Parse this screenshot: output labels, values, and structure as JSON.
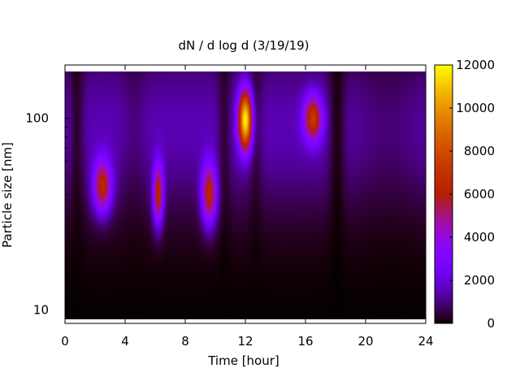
{
  "chart_data": {
    "type": "heatmap",
    "title": "dN / d log d (3/19/19)",
    "xlabel": "Time [hour]",
    "ylabel": "Particle size [nm]",
    "xlim": [
      0,
      24
    ],
    "ylim_nm": [
      8.5,
      190
    ],
    "y_scale": "log",
    "x_ticks": [
      "0",
      "4",
      "8",
      "12",
      "16",
      "20",
      "24"
    ],
    "x_tick_values": [
      0,
      4,
      8,
      12,
      16,
      20,
      24
    ],
    "y_ticks": [
      "10",
      "100"
    ],
    "y_tick_values": [
      10,
      100
    ],
    "colorbar": {
      "ticks": [
        "0",
        "2000",
        "4000",
        "6000",
        "8000",
        "10000",
        "12000"
      ],
      "tick_values": [
        0,
        2000,
        4000,
        6000,
        8000,
        10000,
        12000
      ],
      "range": [
        0,
        12000
      ],
      "colormap": "gnuplot"
    },
    "background_level": 1500,
    "blobs": [
      {
        "t": 2.5,
        "d_nm": 44,
        "peak": 5600,
        "t_width": 0.6,
        "d_width_log10": 0.14
      },
      {
        "t": 6.2,
        "d_nm": 40,
        "peak": 5600,
        "t_width": 0.35,
        "d_width_log10": 0.16
      },
      {
        "t": 9.6,
        "d_nm": 40,
        "peak": 5700,
        "t_width": 0.5,
        "d_width_log10": 0.16
      },
      {
        "t": 12.0,
        "d_nm": 98,
        "peak": 10500,
        "t_width": 0.45,
        "d_width_log10": 0.15
      },
      {
        "t": 16.5,
        "d_nm": 100,
        "peak": 5800,
        "t_width": 0.6,
        "d_width_log10": 0.12
      }
    ],
    "dips": [
      {
        "t": 0.8,
        "depth": 0.75,
        "width": 0.5
      },
      {
        "t": 4.6,
        "depth": 0.35,
        "width": 0.8
      },
      {
        "t": 10.6,
        "depth": 0.7,
        "width": 0.45
      },
      {
        "t": 12.7,
        "depth": 0.6,
        "width": 0.45
      },
      {
        "t": 18.1,
        "depth": 0.9,
        "width": 0.55
      },
      {
        "t": 21.5,
        "depth": 0.4,
        "width": 2.5
      }
    ]
  }
}
